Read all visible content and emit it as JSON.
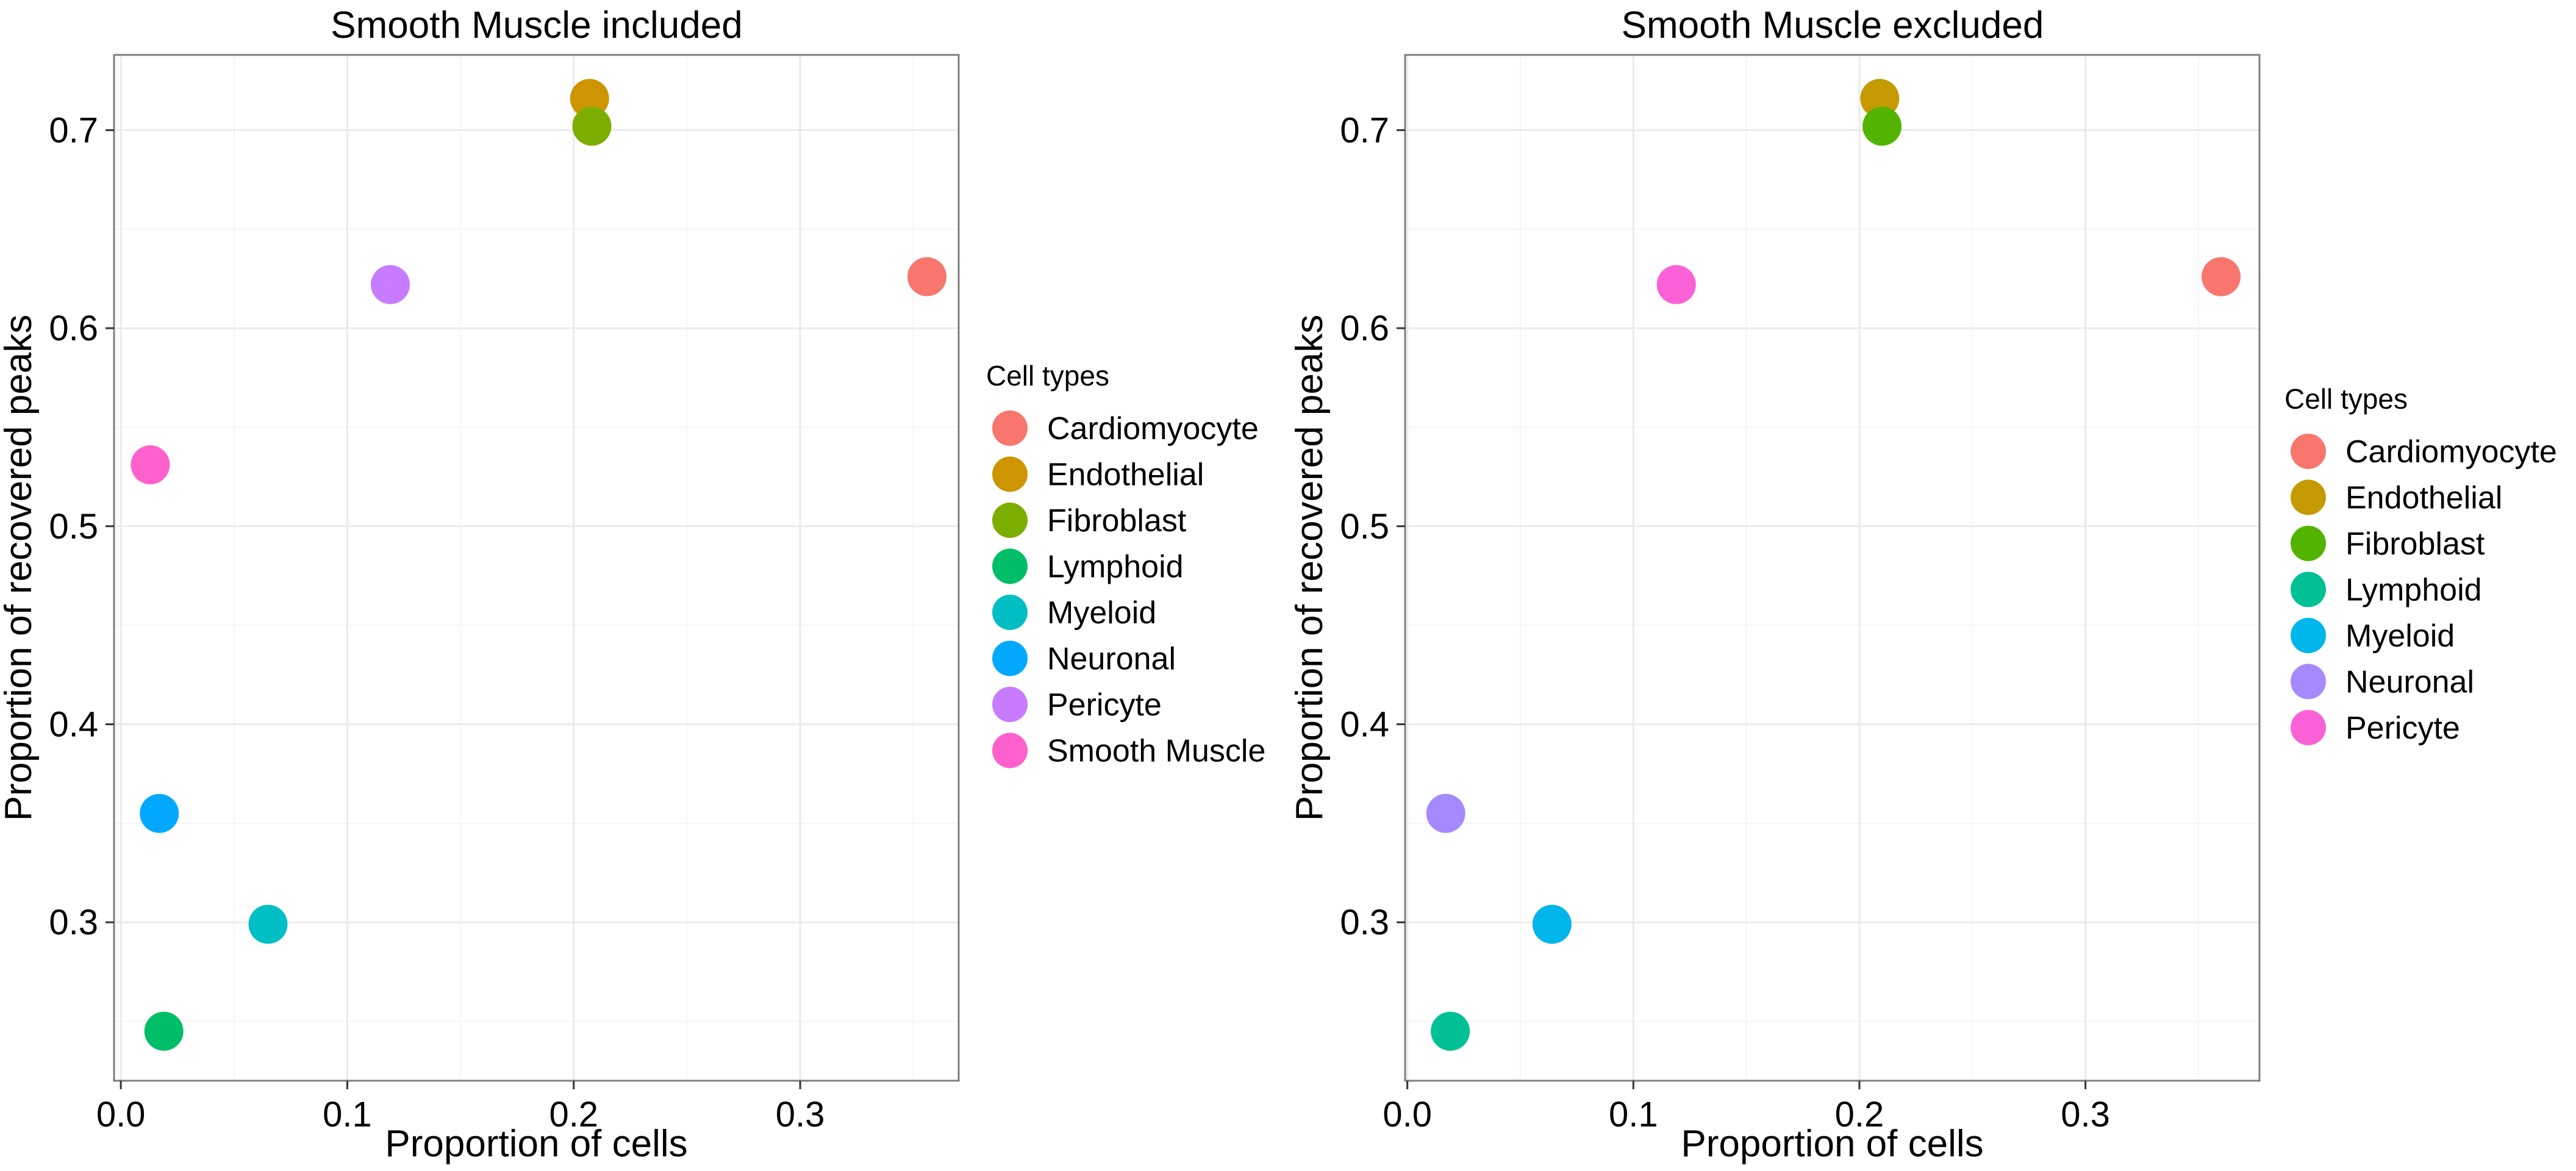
{
  "chart_data": [
    {
      "type": "scatter",
      "title": "Smooth Muscle included",
      "xlabel": "Proportion of cells",
      "ylabel": "Proportion of recovered peaks",
      "xlim": [
        -0.003,
        0.37
      ],
      "ylim": [
        0.22,
        0.738
      ],
      "xticks": [
        0.0,
        0.1,
        0.2,
        0.3
      ],
      "xtick_labels": [
        "0.0",
        "0.1",
        "0.2",
        "0.3"
      ],
      "yticks": [
        0.3,
        0.4,
        0.5,
        0.6,
        0.7
      ],
      "ytick_labels": [
        "0.3",
        "0.4",
        "0.5",
        "0.6",
        "0.7"
      ],
      "grid": true,
      "legend_title": "Cell types",
      "legend_position": "right",
      "series": [
        {
          "name": "Cardiomyocyte",
          "color": "#F8766D",
          "x": 0.356,
          "y": 0.626
        },
        {
          "name": "Endothelial",
          "color": "#CD9600",
          "x": 0.207,
          "y": 0.716
        },
        {
          "name": "Fibroblast",
          "color": "#7CAE00",
          "x": 0.208,
          "y": 0.702
        },
        {
          "name": "Lymphoid",
          "color": "#00BE67",
          "x": 0.019,
          "y": 0.245
        },
        {
          "name": "Myeloid",
          "color": "#00BFC4",
          "x": 0.065,
          "y": 0.299
        },
        {
          "name": "Neuronal",
          "color": "#00A9FF",
          "x": 0.017,
          "y": 0.355
        },
        {
          "name": "Pericyte",
          "color": "#C77CFF",
          "x": 0.119,
          "y": 0.622
        },
        {
          "name": "Smooth Muscle",
          "color": "#FF61CC",
          "x": 0.013,
          "y": 0.531
        }
      ]
    },
    {
      "type": "scatter",
      "title": "Smooth Muscle excluded",
      "xlabel": "Proportion of cells",
      "ylabel": "Proportion of recovered peaks",
      "xlim": [
        -0.001,
        0.377
      ],
      "ylim": [
        0.22,
        0.738
      ],
      "xticks": [
        0.0,
        0.1,
        0.2,
        0.3
      ],
      "xtick_labels": [
        "0.0",
        "0.1",
        "0.2",
        "0.3"
      ],
      "yticks": [
        0.3,
        0.4,
        0.5,
        0.6,
        0.7
      ],
      "ytick_labels": [
        "0.3",
        "0.4",
        "0.5",
        "0.6",
        "0.7"
      ],
      "grid": true,
      "legend_title": "Cell types",
      "legend_position": "right",
      "series": [
        {
          "name": "Cardiomyocyte",
          "color": "#F8766D",
          "x": 0.36,
          "y": 0.626
        },
        {
          "name": "Endothelial",
          "color": "#C49A00",
          "x": 0.209,
          "y": 0.716
        },
        {
          "name": "Fibroblast",
          "color": "#53B400",
          "x": 0.21,
          "y": 0.702
        },
        {
          "name": "Lymphoid",
          "color": "#00C094",
          "x": 0.019,
          "y": 0.245
        },
        {
          "name": "Myeloid",
          "color": "#00B6EB",
          "x": 0.064,
          "y": 0.299
        },
        {
          "name": "Neuronal",
          "color": "#A58AFF",
          "x": 0.017,
          "y": 0.355
        },
        {
          "name": "Pericyte",
          "color": "#FB61D7",
          "x": 0.119,
          "y": 0.622
        }
      ]
    }
  ]
}
